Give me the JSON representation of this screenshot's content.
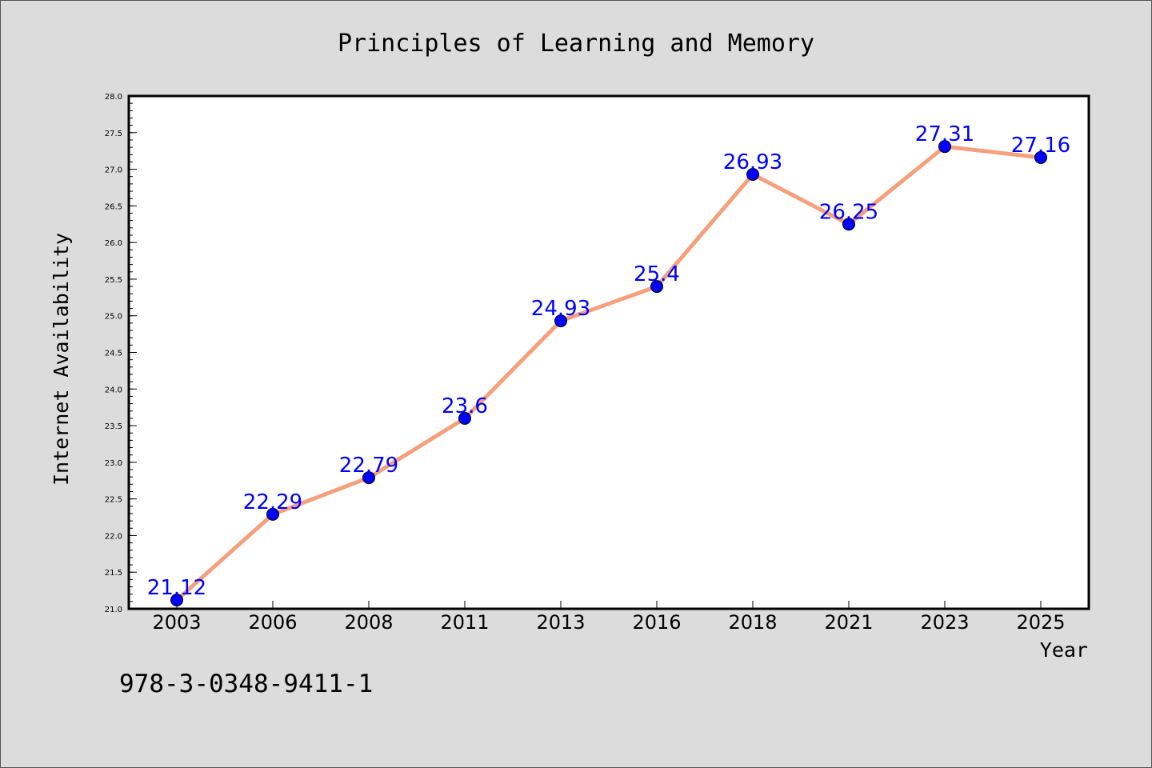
{
  "footer": {
    "isbn": "978-3-0348-9411-1"
  },
  "colors": {
    "background": "#dcdcdc",
    "plot_background": "#ffffff",
    "line": "#f4a07c",
    "marker": "#0000ff",
    "data_label": "#0000ff"
  },
  "chart_data": {
    "type": "line",
    "title": "Principles of Learning and Memory",
    "xlabel": "Year",
    "ylabel": "Internet Availability",
    "categories": [
      "2003",
      "2006",
      "2008",
      "2011",
      "2013",
      "2016",
      "2018",
      "2021",
      "2023",
      "2025"
    ],
    "series": [
      {
        "values": [
          21.12,
          22.29,
          22.79,
          23.6,
          24.93,
          25.4,
          26.93,
          26.25,
          27.31,
          27.16
        ],
        "data_labels": [
          "21.12",
          "22.29",
          "22.79",
          "23.6",
          "24.93",
          "25.4",
          "26.93",
          "26.25",
          "27.31",
          "27.16"
        ]
      }
    ],
    "ylim": [
      21.0,
      28.0
    ],
    "yticks": [
      "21.0",
      "21.5",
      "22.0",
      "22.5",
      "23.0",
      "23.5",
      "24.0",
      "24.5",
      "25.0",
      "25.5",
      "26.0",
      "26.5",
      "27.0",
      "27.5",
      "28.0"
    ],
    "y_minor_step": 0.1,
    "grid": false,
    "legend": "none",
    "marker": "circle"
  }
}
